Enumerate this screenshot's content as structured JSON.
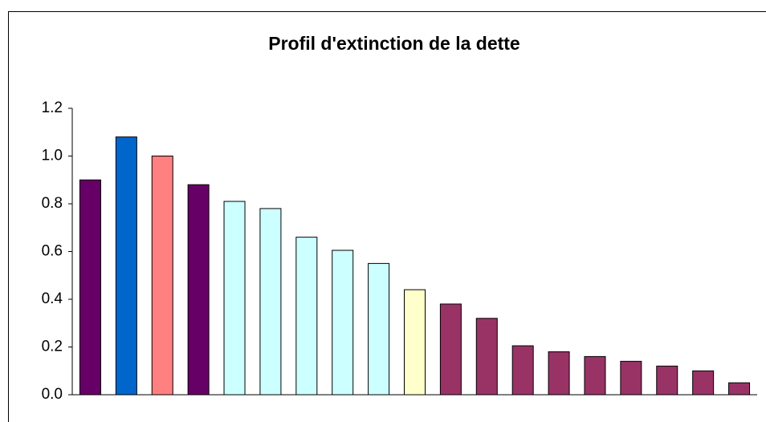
{
  "chart_data": {
    "type": "bar",
    "title": "Profil d'extinction de la dette",
    "categories": [
      null,
      null,
      null,
      null,
      null,
      null,
      null,
      null,
      null,
      null,
      null,
      null,
      null,
      null,
      null,
      null,
      null,
      null,
      null
    ],
    "values": [
      0.9,
      1.08,
      1.0,
      0.88,
      0.81,
      0.78,
      0.66,
      0.605,
      0.55,
      0.44,
      0.38,
      0.32,
      0.205,
      0.18,
      0.16,
      0.14,
      0.12,
      0.1,
      0.05
    ],
    "colors": [
      "#660066",
      "#0066cc",
      "#ff8080",
      "#660066",
      "#ccffff",
      "#ccffff",
      "#ccffff",
      "#ccffff",
      "#ccffff",
      "#ffffcc",
      "#993366",
      "#993366",
      "#993366",
      "#993366",
      "#993366",
      "#993366",
      "#993366",
      "#993366",
      "#993366"
    ],
    "ylim": [
      0,
      1.2
    ],
    "yticks": [
      {
        "value": 0,
        "label": "0.0"
      },
      0.2,
      0.4,
      0.6,
      0.8,
      {
        "value": 1,
        "label": "1.0"
      },
      1.2
    ],
    "grid": false
  }
}
